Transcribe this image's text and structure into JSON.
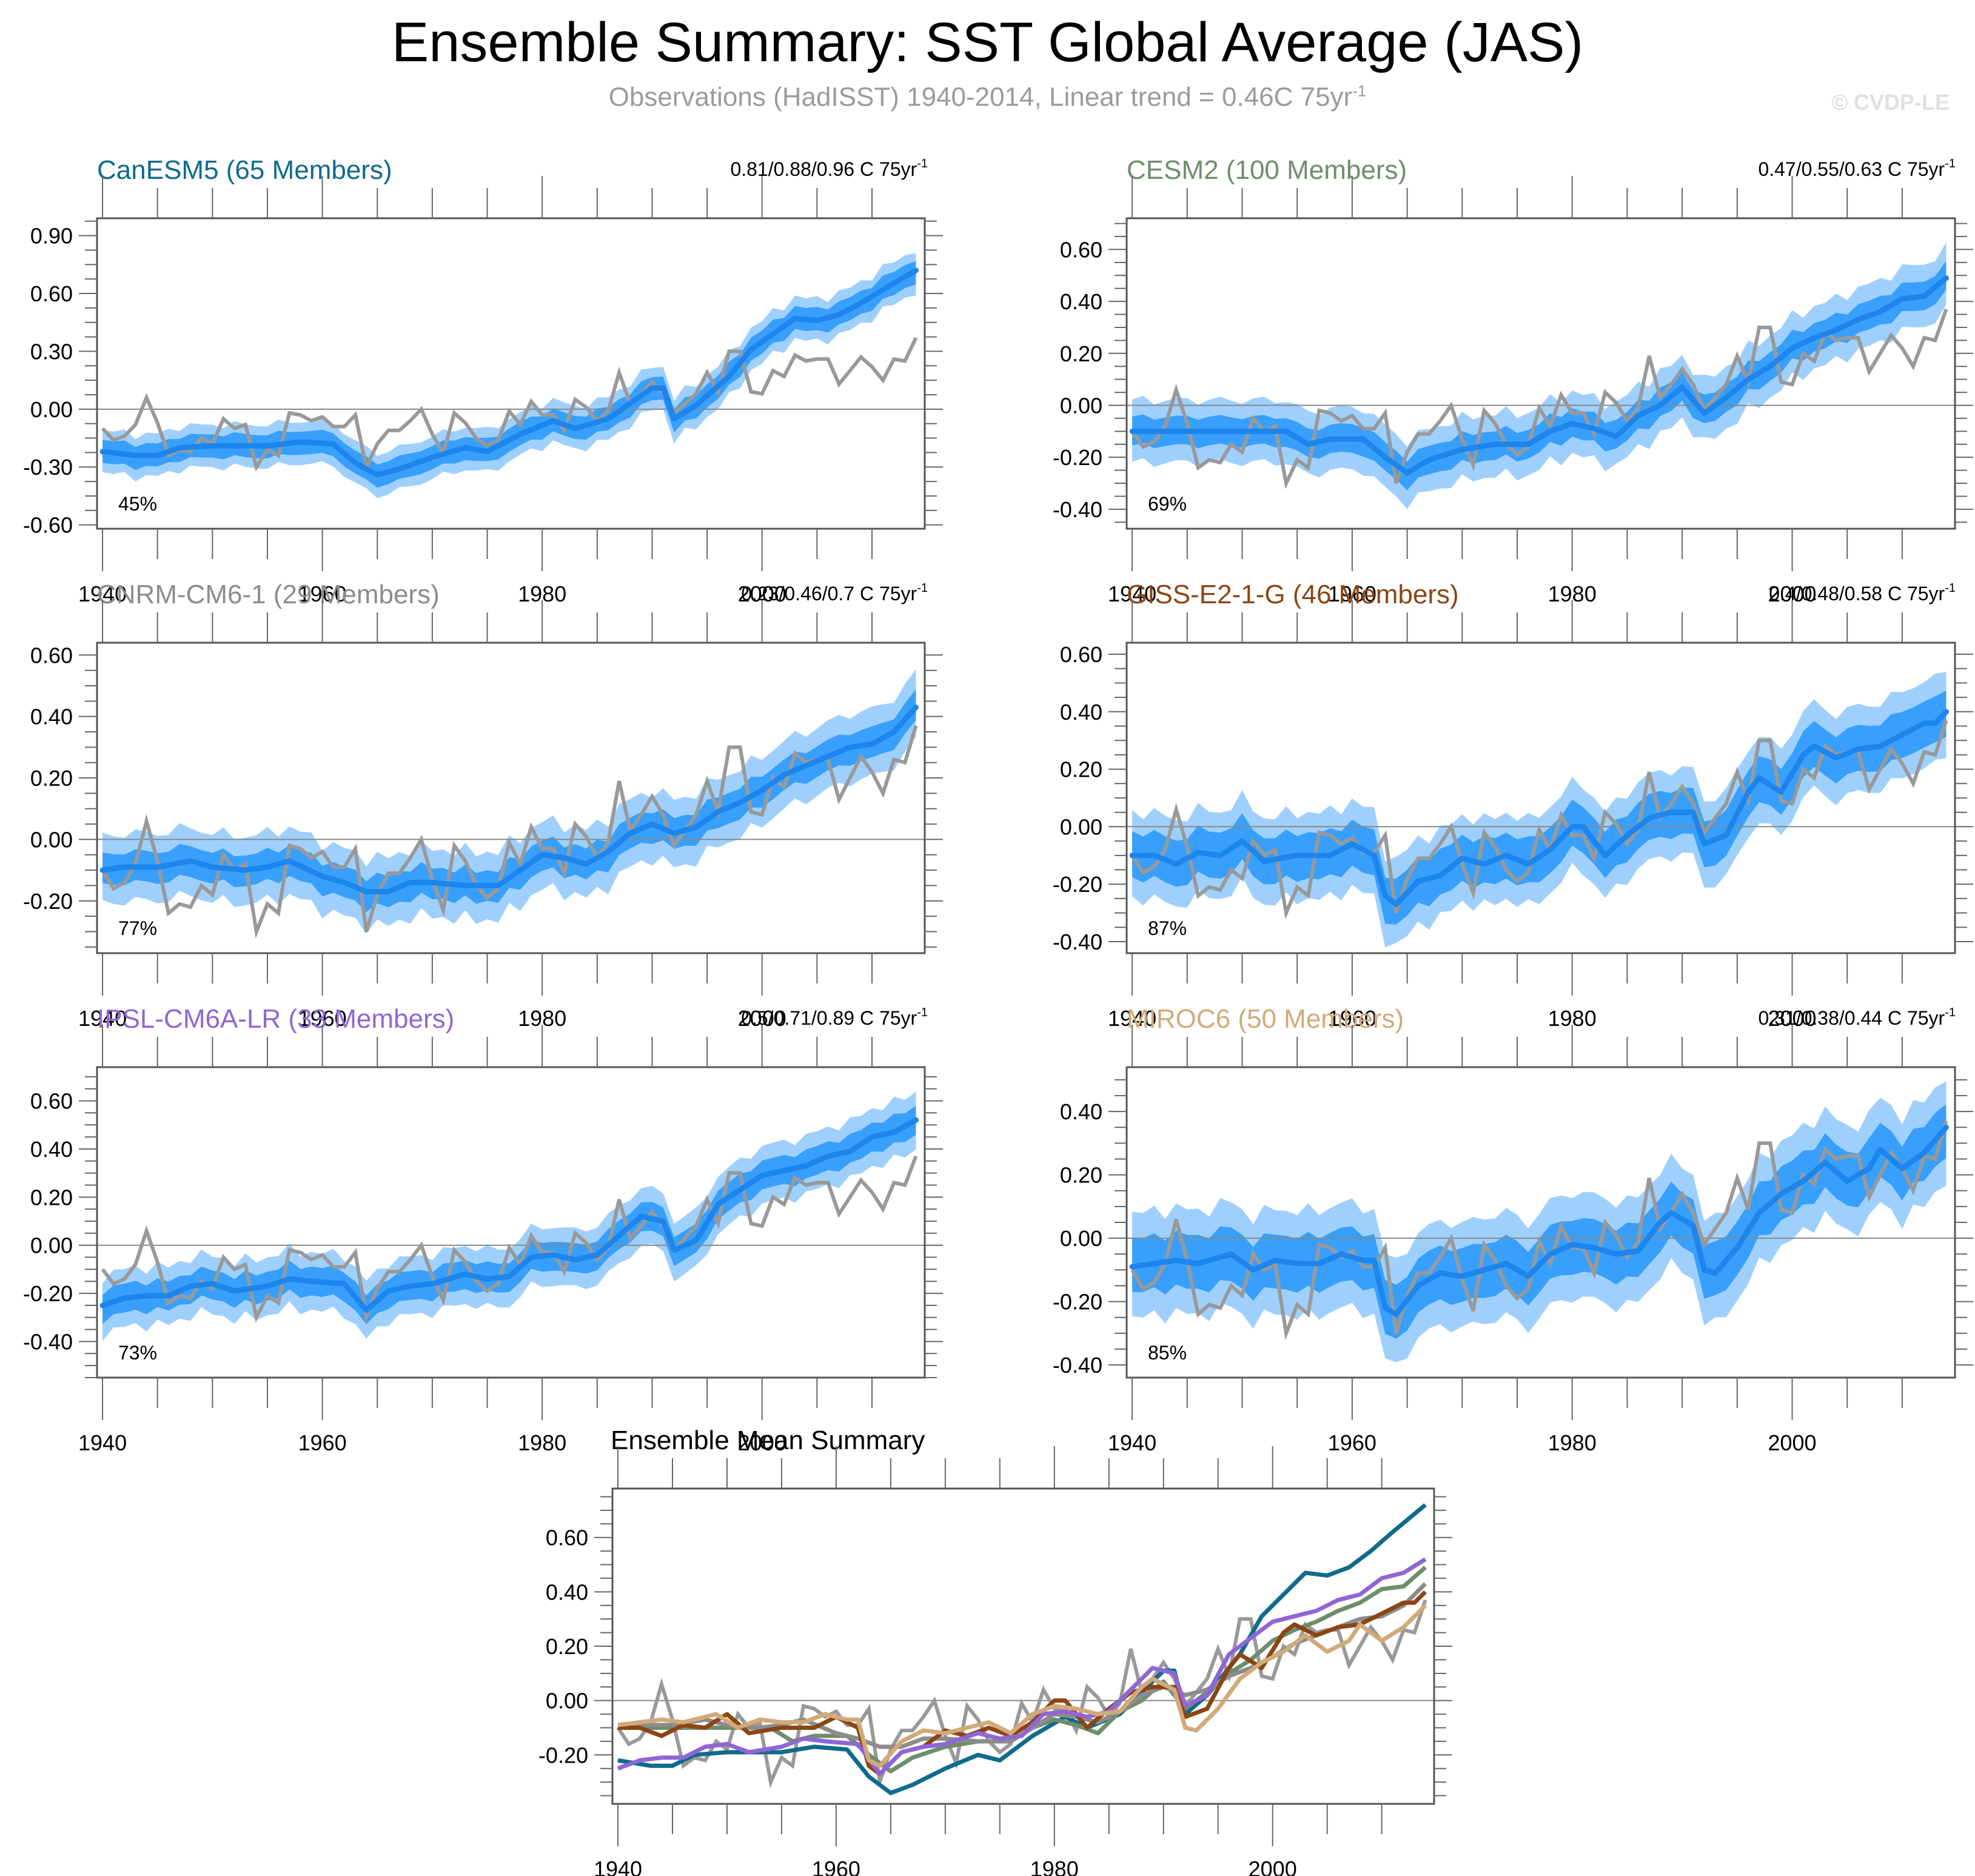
{
  "figure": {
    "title": "Ensemble Summary: SST Global Average (JAS)",
    "subtitle_main": "Observations (HadISST) 1940-2014, Linear trend = 0.46C 75yr",
    "subtitle_sup": "-1",
    "watermark": "© CVDP-LE"
  },
  "colors": {
    "band_outer": "#9fd0fd",
    "band_inner": "#38a0fc",
    "ensemble_mean": "#1c86ee",
    "observations": "#999999",
    "axis": "#555555",
    "zero_line": "#888888"
  },
  "chart_data": [
    {
      "type": "area",
      "id": "canesm5",
      "title": "CanESM5 (65 Members)",
      "title_color": "#0f6b8c",
      "trend_label": "0.81/0.88/0.96 C 75yr",
      "trend_sup": "-1",
      "percent_label": "45%",
      "ylim": [
        -0.62,
        0.99
      ],
      "yticks": [
        -0.6,
        -0.3,
        0.0,
        0.3,
        0.6,
        0.9
      ],
      "ytick_labels": [
        "-0.60",
        "-0.30",
        "0.00",
        "0.30",
        "0.60",
        "0.90"
      ],
      "ensemble_mean_keypoints": [
        [
          1940,
          -0.22
        ],
        [
          1943,
          -0.24
        ],
        [
          1945,
          -0.24
        ],
        [
          1947,
          -0.2
        ],
        [
          1950,
          -0.19
        ],
        [
          1955,
          -0.19
        ],
        [
          1958,
          -0.17
        ],
        [
          1961,
          -0.18
        ],
        [
          1963,
          -0.28
        ],
        [
          1965,
          -0.34
        ],
        [
          1967,
          -0.31
        ],
        [
          1970,
          -0.25
        ],
        [
          1973,
          -0.2
        ],
        [
          1975,
          -0.22
        ],
        [
          1978,
          -0.13
        ],
        [
          1981,
          -0.06
        ],
        [
          1983,
          -0.1
        ],
        [
          1986,
          -0.05
        ],
        [
          1988,
          0.03
        ],
        [
          1990,
          0.11
        ],
        [
          1991,
          0.11
        ],
        [
          1992,
          -0.05
        ],
        [
          1994,
          0.02
        ],
        [
          1997,
          0.17
        ],
        [
          1999,
          0.31
        ],
        [
          2001,
          0.39
        ],
        [
          2003,
          0.47
        ],
        [
          2005,
          0.46
        ],
        [
          2007,
          0.49
        ],
        [
          2009,
          0.55
        ],
        [
          2011,
          0.62
        ],
        [
          2014,
          0.72
        ]
      ],
      "inner_halfwidth": 0.06,
      "outer_halfwidth": 0.11
    },
    {
      "type": "area",
      "id": "cesm2",
      "title": "CESM2 (100 Members)",
      "title_color": "#6e8e6a",
      "trend_label": "0.47/0.55/0.63 C 75yr",
      "trend_sup": "-1",
      "percent_label": "69%",
      "ylim": [
        -0.475,
        0.72
      ],
      "yticks": [
        -0.4,
        -0.2,
        0.0,
        0.2,
        0.4,
        0.6
      ],
      "ytick_labels": [
        "-0.40",
        "-0.20",
        "0.00",
        "0.20",
        "0.40",
        "0.60"
      ],
      "ensemble_mean_keypoints": [
        [
          1940,
          -0.1
        ],
        [
          1943,
          -0.1
        ],
        [
          1945,
          -0.1
        ],
        [
          1950,
          -0.1
        ],
        [
          1954,
          -0.1
        ],
        [
          1956,
          -0.15
        ],
        [
          1958,
          -0.13
        ],
        [
          1961,
          -0.13
        ],
        [
          1963,
          -0.2
        ],
        [
          1965,
          -0.26
        ],
        [
          1967,
          -0.21
        ],
        [
          1970,
          -0.17
        ],
        [
          1973,
          -0.15
        ],
        [
          1976,
          -0.15
        ],
        [
          1978,
          -0.1
        ],
        [
          1980,
          -0.07
        ],
        [
          1982,
          -0.09
        ],
        [
          1984,
          -0.12
        ],
        [
          1986,
          -0.04
        ],
        [
          1988,
          0.0
        ],
        [
          1990,
          0.07
        ],
        [
          1992,
          -0.03
        ],
        [
          1994,
          0.03
        ],
        [
          1996,
          0.1
        ],
        [
          1998,
          0.15
        ],
        [
          2000,
          0.22
        ],
        [
          2002,
          0.26
        ],
        [
          2004,
          0.29
        ],
        [
          2006,
          0.33
        ],
        [
          2008,
          0.36
        ],
        [
          2010,
          0.41
        ],
        [
          2012,
          0.42
        ],
        [
          2014,
          0.49
        ]
      ],
      "inner_halfwidth": 0.055,
      "outer_halfwidth": 0.12
    },
    {
      "type": "area",
      "id": "cnrm-cm6-1",
      "title": "CNRM-CM6-1 (29 Members)",
      "title_color": "#8c8c8c",
      "trend_label": "0.23/0.46/0.7 C 75yr",
      "trend_sup": "-1",
      "percent_label": "77%",
      "ylim": [
        -0.37,
        0.64
      ],
      "yticks": [
        -0.2,
        0.0,
        0.2,
        0.4,
        0.6
      ],
      "ytick_labels": [
        "-0.20",
        "0.00",
        "0.20",
        "0.40",
        "0.60"
      ],
      "ensemble_mean_keypoints": [
        [
          1940,
          -0.1
        ],
        [
          1942,
          -0.09
        ],
        [
          1945,
          -0.09
        ],
        [
          1948,
          -0.07
        ],
        [
          1950,
          -0.09
        ],
        [
          1953,
          -0.1
        ],
        [
          1955,
          -0.09
        ],
        [
          1957,
          -0.07
        ],
        [
          1960,
          -0.12
        ],
        [
          1962,
          -0.14
        ],
        [
          1964,
          -0.17
        ],
        [
          1966,
          -0.17
        ],
        [
          1968,
          -0.14
        ],
        [
          1970,
          -0.14
        ],
        [
          1973,
          -0.15
        ],
        [
          1976,
          -0.15
        ],
        [
          1978,
          -0.1
        ],
        [
          1980,
          -0.05
        ],
        [
          1982,
          -0.06
        ],
        [
          1984,
          -0.08
        ],
        [
          1986,
          -0.04
        ],
        [
          1988,
          0.02
        ],
        [
          1990,
          0.05
        ],
        [
          1992,
          0.02
        ],
        [
          1994,
          0.04
        ],
        [
          1996,
          0.09
        ],
        [
          1998,
          0.12
        ],
        [
          2000,
          0.16
        ],
        [
          2002,
          0.21
        ],
        [
          2004,
          0.24
        ],
        [
          2006,
          0.27
        ],
        [
          2008,
          0.3
        ],
        [
          2010,
          0.31
        ],
        [
          2012,
          0.35
        ],
        [
          2014,
          0.43
        ]
      ],
      "inner_halfwidth": 0.05,
      "outer_halfwidth": 0.11
    },
    {
      "type": "area",
      "id": "giss-e2-1-g",
      "title": "GISS-E2-1-G (46 Members)",
      "title_color": "#8b4513",
      "trend_label": "0.4/0.48/0.58 C 75yr",
      "trend_sup": "-1",
      "percent_label": "87%",
      "ylim": [
        -0.44,
        0.64
      ],
      "yticks": [
        -0.4,
        -0.2,
        0.0,
        0.2,
        0.4,
        0.6
      ],
      "ytick_labels": [
        "-0.40",
        "-0.20",
        "0.00",
        "0.20",
        "0.40",
        "0.60"
      ],
      "ensemble_mean_keypoints": [
        [
          1940,
          -0.1
        ],
        [
          1942,
          -0.1
        ],
        [
          1944,
          -0.13
        ],
        [
          1946,
          -0.09
        ],
        [
          1948,
          -0.1
        ],
        [
          1950,
          -0.05
        ],
        [
          1952,
          -0.12
        ],
        [
          1955,
          -0.1
        ],
        [
          1958,
          -0.1
        ],
        [
          1960,
          -0.06
        ],
        [
          1962,
          -0.1
        ],
        [
          1963,
          -0.24
        ],
        [
          1964,
          -0.27
        ],
        [
          1966,
          -0.19
        ],
        [
          1968,
          -0.17
        ],
        [
          1970,
          -0.11
        ],
        [
          1972,
          -0.13
        ],
        [
          1974,
          -0.1
        ],
        [
          1976,
          -0.13
        ],
        [
          1978,
          -0.08
        ],
        [
          1980,
          0.0
        ],
        [
          1981,
          0.0
        ],
        [
          1983,
          -0.1
        ],
        [
          1985,
          -0.03
        ],
        [
          1987,
          0.03
        ],
        [
          1989,
          0.05
        ],
        [
          1991,
          0.05
        ],
        [
          1992,
          -0.06
        ],
        [
          1994,
          -0.03
        ],
        [
          1996,
          0.12
        ],
        [
          1997,
          0.17
        ],
        [
          1999,
          0.12
        ],
        [
          2001,
          0.25
        ],
        [
          2002,
          0.28
        ],
        [
          2004,
          0.24
        ],
        [
          2006,
          0.27
        ],
        [
          2008,
          0.28
        ],
        [
          2010,
          0.32
        ],
        [
          2012,
          0.36
        ],
        [
          2013,
          0.36
        ],
        [
          2014,
          0.4
        ]
      ],
      "inner_halfwidth": 0.08,
      "outer_halfwidth": 0.15
    },
    {
      "type": "area",
      "id": "ipsl-cm6a-lr",
      "title": "IPSL-CM6A-LR (33 Members)",
      "title_color": "#9066d6",
      "trend_label": "0.5/0.71/0.89 C 75yr",
      "trend_sup": "-1",
      "percent_label": "73%",
      "ylim": [
        -0.55,
        0.74
      ],
      "yticks": [
        -0.4,
        -0.2,
        0.0,
        0.2,
        0.4,
        0.6
      ],
      "ytick_labels": [
        "-0.40",
        "-0.20",
        "0.00",
        "0.20",
        "0.40",
        "0.60"
      ],
      "ensemble_mean_keypoints": [
        [
          1940,
          -0.25
        ],
        [
          1942,
          -0.22
        ],
        [
          1944,
          -0.21
        ],
        [
          1946,
          -0.21
        ],
        [
          1948,
          -0.17
        ],
        [
          1950,
          -0.16
        ],
        [
          1952,
          -0.19
        ],
        [
          1955,
          -0.17
        ],
        [
          1957,
          -0.14
        ],
        [
          1959,
          -0.15
        ],
        [
          1962,
          -0.16
        ],
        [
          1964,
          -0.27
        ],
        [
          1966,
          -0.19
        ],
        [
          1968,
          -0.17
        ],
        [
          1970,
          -0.16
        ],
        [
          1973,
          -0.12
        ],
        [
          1975,
          -0.14
        ],
        [
          1977,
          -0.13
        ],
        [
          1979,
          -0.05
        ],
        [
          1981,
          -0.04
        ],
        [
          1983,
          -0.06
        ],
        [
          1985,
          -0.04
        ],
        [
          1987,
          0.04
        ],
        [
          1989,
          0.12
        ],
        [
          1991,
          0.1
        ],
        [
          1992,
          -0.02
        ],
        [
          1994,
          0.02
        ],
        [
          1996,
          0.17
        ],
        [
          1998,
          0.23
        ],
        [
          2000,
          0.29
        ],
        [
          2002,
          0.31
        ],
        [
          2004,
          0.33
        ],
        [
          2006,
          0.37
        ],
        [
          2008,
          0.39
        ],
        [
          2010,
          0.45
        ],
        [
          2012,
          0.47
        ],
        [
          2014,
          0.52
        ]
      ],
      "inner_halfwidth": 0.06,
      "outer_halfwidth": 0.12
    },
    {
      "type": "area",
      "id": "miroc6",
      "title": "MIROC6 (50 Members)",
      "title_color": "#d2aa7a",
      "trend_label": "0.31/0.38/0.44 C 75yr",
      "trend_sup": "-1",
      "percent_label": "85%",
      "ylim": [
        -0.44,
        0.54
      ],
      "yticks": [
        -0.4,
        -0.2,
        0.0,
        0.2,
        0.4
      ],
      "ytick_labels": [
        "-0.40",
        "-0.20",
        "0.00",
        "0.20",
        "0.40"
      ],
      "ensemble_mean_keypoints": [
        [
          1940,
          -0.09
        ],
        [
          1942,
          -0.08
        ],
        [
          1944,
          -0.07
        ],
        [
          1946,
          -0.08
        ],
        [
          1949,
          -0.05
        ],
        [
          1951,
          -0.1
        ],
        [
          1953,
          -0.07
        ],
        [
          1955,
          -0.08
        ],
        [
          1957,
          -0.08
        ],
        [
          1959,
          -0.05
        ],
        [
          1961,
          -0.07
        ],
        [
          1962,
          -0.07
        ],
        [
          1963,
          -0.22
        ],
        [
          1964,
          -0.24
        ],
        [
          1966,
          -0.15
        ],
        [
          1968,
          -0.11
        ],
        [
          1970,
          -0.12
        ],
        [
          1972,
          -0.1
        ],
        [
          1974,
          -0.08
        ],
        [
          1976,
          -0.12
        ],
        [
          1978,
          -0.05
        ],
        [
          1980,
          -0.02
        ],
        [
          1982,
          -0.03
        ],
        [
          1984,
          -0.05
        ],
        [
          1986,
          -0.04
        ],
        [
          1988,
          0.05
        ],
        [
          1989,
          0.08
        ],
        [
          1991,
          0.04
        ],
        [
          1992,
          -0.1
        ],
        [
          1993,
          -0.11
        ],
        [
          1995,
          -0.03
        ],
        [
          1997,
          0.08
        ],
        [
          1999,
          0.14
        ],
        [
          2001,
          0.18
        ],
        [
          2003,
          0.24
        ],
        [
          2005,
          0.18
        ],
        [
          2007,
          0.22
        ],
        [
          2008,
          0.28
        ],
        [
          2010,
          0.22
        ],
        [
          2012,
          0.27
        ],
        [
          2014,
          0.35
        ]
      ],
      "inner_halfwidth": 0.085,
      "outer_halfwidth": 0.165
    },
    {
      "type": "line",
      "id": "ensemble-mean-summary",
      "title": "Ensemble Mean Summary",
      "title_color": "#000000",
      "ylim": [
        -0.38,
        0.78
      ],
      "yticks": [
        -0.2,
        0.0,
        0.2,
        0.4,
        0.6
      ],
      "ytick_labels": [
        "-0.20",
        "0.00",
        "0.20",
        "0.40",
        "0.60"
      ],
      "series_ref": [
        "canesm5",
        "cesm2",
        "cnrm-cm6-1",
        "giss-e2-1-g",
        "ipsl-cm6a-lr",
        "miroc6"
      ]
    }
  ],
  "shared_axes": {
    "xlim": [
      1939.5,
      2014.8
    ],
    "xticks": [
      1940,
      1960,
      1980,
      2000
    ],
    "xtick_labels": [
      "1940",
      "1960",
      "1980",
      "2000"
    ],
    "xminor_step": 5
  },
  "observations": {
    "label": "HadISST",
    "years_start": 1940,
    "values": [
      -0.1,
      -0.16,
      -0.14,
      -0.08,
      0.06,
      -0.07,
      -0.24,
      -0.21,
      -0.22,
      -0.15,
      -0.18,
      -0.05,
      -0.1,
      -0.08,
      -0.3,
      -0.21,
      -0.24,
      -0.02,
      -0.03,
      -0.06,
      -0.04,
      -0.09,
      -0.09,
      -0.03,
      -0.3,
      -0.18,
      -0.11,
      -0.11,
      -0.06,
      0.0,
      -0.13,
      -0.23,
      -0.02,
      -0.07,
      -0.15,
      -0.19,
      -0.16,
      -0.01,
      -0.08,
      0.04,
      -0.03,
      -0.03,
      -0.11,
      0.05,
      0.01,
      -0.06,
      -0.01,
      0.19,
      0.03,
      0.08,
      0.14,
      0.08,
      -0.02,
      0.03,
      0.08,
      0.19,
      0.09,
      0.3,
      0.3,
      0.09,
      0.08,
      0.2,
      0.17,
      0.28,
      0.25,
      0.26,
      0.26,
      0.13,
      0.2,
      0.27,
      0.22,
      0.15,
      0.26,
      0.25,
      0.37
    ]
  }
}
